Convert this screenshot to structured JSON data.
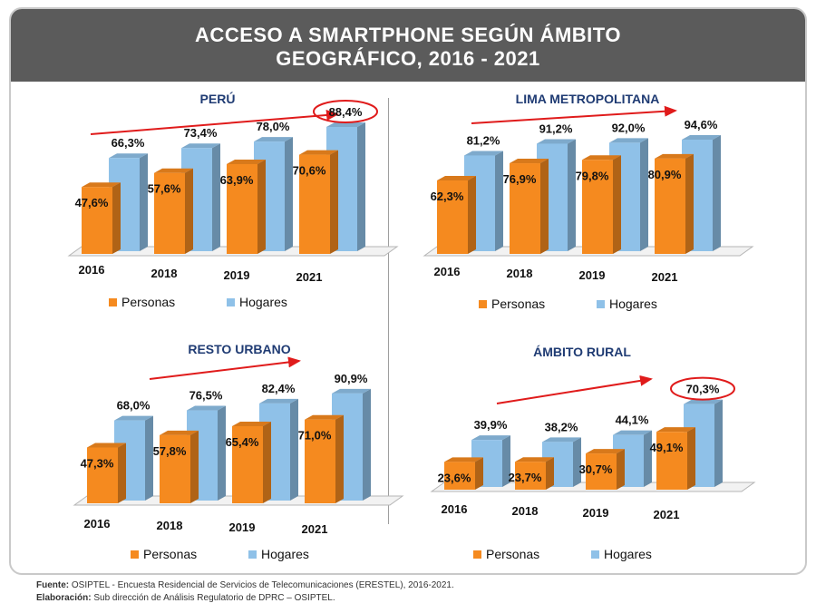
{
  "title": {
    "line1": "ACCESO A SMARTPHONE SEGÚN ÁMBITO",
    "line2": "GEOGRÁFICO, 2016 - 2021"
  },
  "colors": {
    "header_bg": "#5b5b5b",
    "personas": "#f58a1f",
    "hogares": "#8fc1e8",
    "title_text": "#1f3b73",
    "arrow": "#e01b1b"
  },
  "legend": {
    "personas": "Personas",
    "hogares": "Hogares"
  },
  "chart_data": [
    {
      "type": "bar",
      "title": "PERÚ",
      "categories": [
        "2016",
        "2018",
        "2019",
        "2021"
      ],
      "series": [
        {
          "name": "Personas",
          "values": [
            47.6,
            57.6,
            63.9,
            70.6
          ],
          "labels": [
            "47,6%",
            "57,6%",
            "63,9%",
            "70,6%"
          ]
        },
        {
          "name": "Hogares",
          "values": [
            66.3,
            73.4,
            78.0,
            88.4
          ],
          "labels": [
            "66,3%",
            "73,4%",
            "78,0%",
            "88,4%"
          ]
        }
      ],
      "highlight": "88,4%",
      "ylim": [
        0,
        100
      ],
      "legend_position": "bottom"
    },
    {
      "type": "bar",
      "title": "LIMA METROPOLITANA",
      "categories": [
        "2016",
        "2018",
        "2019",
        "2021"
      ],
      "series": [
        {
          "name": "Personas",
          "values": [
            62.3,
            76.9,
            79.8,
            80.9
          ],
          "labels": [
            "62,3%",
            "76,9%",
            "79,8%",
            "80,9%"
          ]
        },
        {
          "name": "Hogares",
          "values": [
            81.2,
            91.2,
            92.0,
            94.6
          ],
          "labels": [
            "81,2%",
            "91,2%",
            "92,0%",
            "94,6%"
          ]
        }
      ],
      "highlight": "",
      "ylim": [
        0,
        100
      ],
      "legend_position": "bottom"
    },
    {
      "type": "bar",
      "title": "RESTO URBANO",
      "categories": [
        "2016",
        "2018",
        "2019",
        "2021"
      ],
      "series": [
        {
          "name": "Personas",
          "values": [
            47.3,
            57.8,
            65.4,
            71.0
          ],
          "labels": [
            "47,3%",
            "57,8%",
            "65,4%",
            "71,0%"
          ]
        },
        {
          "name": "Hogares",
          "values": [
            68.0,
            76.5,
            82.4,
            90.9
          ],
          "labels": [
            "68,0%",
            "76,5%",
            "82,4%",
            "90,9%"
          ]
        }
      ],
      "highlight": "",
      "ylim": [
        0,
        100
      ],
      "legend_position": "bottom"
    },
    {
      "type": "bar",
      "title": "ÁMBITO RURAL",
      "categories": [
        "2016",
        "2018",
        "2019",
        "2021"
      ],
      "series": [
        {
          "name": "Personas",
          "values": [
            23.6,
            23.7,
            30.7,
            49.1
          ],
          "labels": [
            "23,6%",
            "23,7%",
            "30,7%",
            "49,1%"
          ]
        },
        {
          "name": "Hogares",
          "values": [
            39.9,
            38.2,
            44.1,
            70.3
          ],
          "labels": [
            "39,9%",
            "38,2%",
            "44,1%",
            "70,3%"
          ]
        }
      ],
      "highlight": "70,3%",
      "ylim": [
        0,
        100
      ],
      "legend_position": "bottom"
    }
  ],
  "footer": {
    "source_label": "Fuente:",
    "source_text": " OSIPTEL - Encuesta Residencial de Servicios de Telecomunicaciones (ERESTEL), 2016-2021.",
    "elab_label": "Elaboración:",
    "elab_text": " Sub dirección de Análisis Regulatorio de DPRC – OSIPTEL."
  }
}
